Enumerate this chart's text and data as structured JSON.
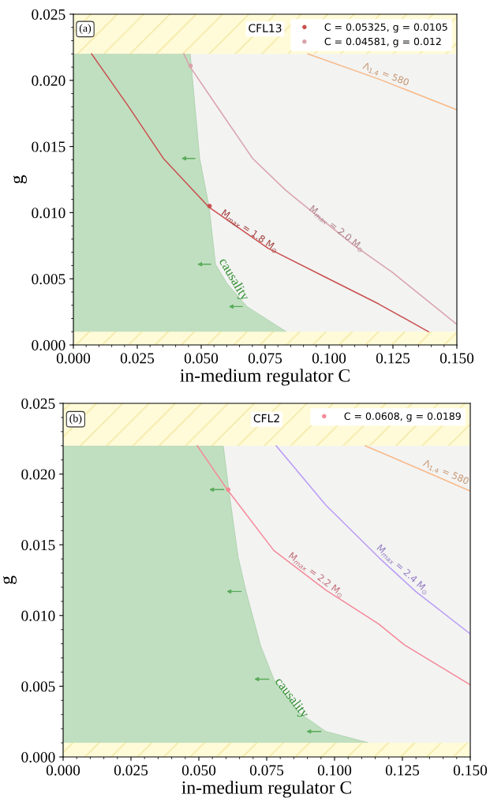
{
  "chart_data": [
    {
      "type": "line",
      "title": "CFL13",
      "xlabel": "in-medium regulator C",
      "ylabel": "g",
      "xlim": [
        0,
        0.15
      ],
      "ylim": [
        0,
        0.025
      ],
      "xticks": [
        {
          "value": 0,
          "label": "0.000"
        },
        {
          "value": 0.025,
          "label": "0.025"
        },
        {
          "value": 0.05,
          "label": "0.050"
        },
        {
          "value": 0.075,
          "label": "0.075"
        },
        {
          "value": 0.1,
          "label": "0.100"
        },
        {
          "value": 0.125,
          "label": "0.125"
        },
        {
          "value": 0.15,
          "label": "0.150"
        }
      ],
      "yticks": [
        {
          "value": 0,
          "label": "0.000"
        },
        {
          "value": 0.005,
          "label": "0.005"
        },
        {
          "value": 0.01,
          "label": "0.010"
        },
        {
          "value": 0.015,
          "label": "0.015"
        },
        {
          "value": 0.02,
          "label": "0.020"
        },
        {
          "value": 0.025,
          "label": "0.025"
        }
      ],
      "bands": [
        {
          "axis": "y",
          "from": 0.022,
          "to": 0.025,
          "color": "#fffbd8"
        },
        {
          "axis": "y",
          "from": 0,
          "to": 0.001,
          "color": "#fffbd8"
        }
      ],
      "series": [
        {
          "type": "area",
          "color": "#c0dfc0",
          "x": [
            0,
            0.0457,
            0.0494,
            0.0531,
            0.0556,
            0.0599,
            0.0679,
            0.0833
          ],
          "values": [
            0.022,
            0.022,
            0.0141,
            0.0104,
            0.0061,
            0.0047,
            0.0029,
            0.001
          ]
        },
        {
          "color": "#c9504f",
          "x": [
            0.0071,
            0.0213,
            0.0352,
            0.0531,
            0.0762,
            0.0988,
            0.1194,
            0.1389
          ],
          "values": [
            0.022,
            0.0181,
            0.0141,
            0.0104,
            0.0073,
            0.0051,
            0.0031,
            0.001
          ]
        },
        {
          "color": "#d9a3ab",
          "x": [
            0.0432,
            0.0454,
            0.0577,
            0.0701,
            0.083,
            0.0957,
            0.11,
            0.1247,
            0.1497
          ],
          "values": [
            0.022,
            0.0211,
            0.0176,
            0.0141,
            0.0117,
            0.0097,
            0.0075,
            0.0055,
            0.0016
          ]
        },
        {
          "color": "#f6b887",
          "x": [
            0.0917,
            0.1194,
            0.1497
          ],
          "values": [
            0.022,
            0.0201,
            0.0178
          ]
        },
        {
          "type": "scatter",
          "name": "C = 0.05325, g = 0.0105",
          "color": "#c9504f",
          "x": [
            0.05325
          ],
          "values": [
            0.0105
          ]
        },
        {
          "type": "scatter",
          "name": "C = 0.04581, g = 0.012",
          "color": "#d9a3ab",
          "x": [
            0.04581
          ],
          "values": [
            0.0211
          ]
        }
      ],
      "annotations": [
        "(a)",
        {
          "text": "M$_{max}$ = 1.8 M$_{⊙}$",
          "x": 0.068,
          "y": 0.0083
        },
        {
          "text": "M$_{max}$ = 2.0 M$_{⊙}$",
          "x": 0.1019,
          "y": 0.0085
        },
        {
          "text": "Λ$_{1.4}$ = 580",
          "x": 0.1216,
          "y": 0.0201
        },
        {
          "text": "causality",
          "x": 0.0606,
          "y": 0.0047
        }
      ],
      "legend": "top right",
      "grid": false
    },
    {
      "type": "line",
      "title": "CFL2",
      "xlabel": "in-medium regulator C",
      "ylabel": "g",
      "xlim": [
        0,
        0.15
      ],
      "ylim": [
        0,
        0.025
      ],
      "xticks": [
        {
          "value": 0,
          "label": "0.000"
        },
        {
          "value": 0.025,
          "label": "0.025"
        },
        {
          "value": 0.05,
          "label": "0.050"
        },
        {
          "value": 0.075,
          "label": "0.075"
        },
        {
          "value": 0.1,
          "label": "0.100"
        },
        {
          "value": 0.125,
          "label": "0.125"
        },
        {
          "value": 0.15,
          "label": "0.150"
        }
      ],
      "yticks": [
        {
          "value": 0,
          "label": "0.000"
        },
        {
          "value": 0.005,
          "label": "0.005"
        },
        {
          "value": 0.01,
          "label": "0.010"
        },
        {
          "value": 0.015,
          "label": "0.015"
        },
        {
          "value": 0.02,
          "label": "0.020"
        },
        {
          "value": 0.025,
          "label": "0.025"
        }
      ],
      "bands": [
        {
          "axis": "y",
          "from": 0.022,
          "to": 0.025,
          "color": "#fffbd8"
        },
        {
          "axis": "y",
          "from": 0,
          "to": 0.001,
          "color": "#fffbd8"
        }
      ],
      "series": [
        {
          "type": "area",
          "color": "#c0dfc0",
          "x": [
            0,
            0.059,
            0.061,
            0.0645,
            0.0674,
            0.0727,
            0.0776,
            0.0872,
            0.0968,
            0.1125
          ],
          "values": [
            0.022,
            0.022,
            0.0189,
            0.0141,
            0.0117,
            0.0079,
            0.0055,
            0.0031,
            0.0018,
            0.001
          ]
        },
        {
          "color": "#f48a98",
          "x": [
            0.0494,
            0.0605,
            0.0776,
            0.0968,
            0.1163,
            0.1259,
            0.15
          ],
          "values": [
            0.022,
            0.0189,
            0.0146,
            0.0118,
            0.0094,
            0.0079,
            0.0051
          ]
        },
        {
          "color": "#b99cf5",
          "x": [
            0.0785,
            0.0968,
            0.1163,
            0.1299,
            0.15
          ],
          "values": [
            0.022,
            0.0178,
            0.0141,
            0.0117,
            0.0087
          ]
        },
        {
          "color": "#f8b98a",
          "x": [
            0.1113,
            0.1308,
            0.15
          ],
          "values": [
            0.022,
            0.0204,
            0.0188
          ]
        },
        {
          "type": "scatter",
          "name": "C = 0.0608, g = 0.0189",
          "color": "#f48a98",
          "x": [
            0.0608
          ],
          "values": [
            0.0189
          ]
        }
      ],
      "annotations": [
        "(b)",
        {
          "text": "M$_{max}$ = 2.2 M$_{⊙}$",
          "x": 0.0922,
          "y": 0.0126
        },
        {
          "text": "M$_{max}$ = 2.4 M$_{⊙}$",
          "x": 0.124,
          "y": 0.013
        },
        {
          "text": "Λ$_{1.4}$ = 580",
          "x": 0.1404,
          "y": 0.0198
        },
        {
          "text": "causality",
          "x": 0.0823,
          "y": 0.0039
        }
      ],
      "legend": "top right",
      "grid": false
    }
  ]
}
